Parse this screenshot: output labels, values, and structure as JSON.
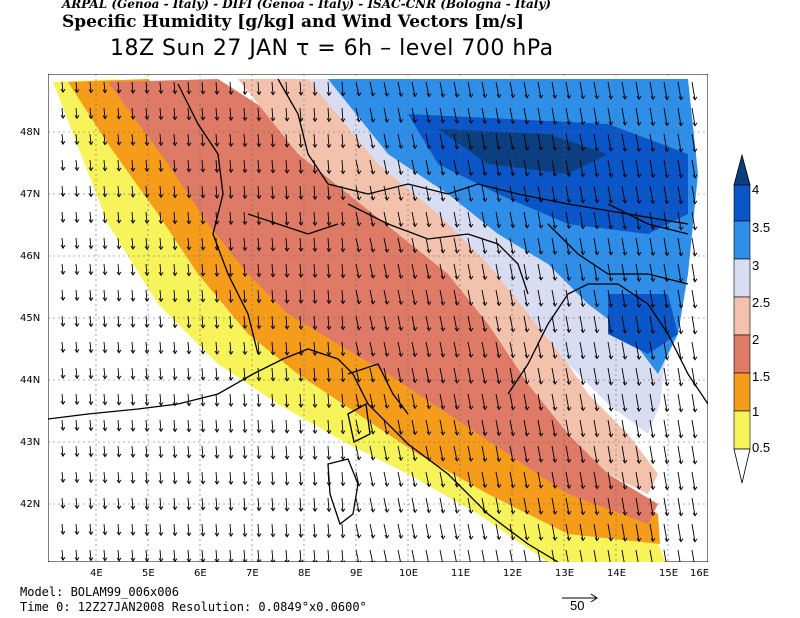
{
  "header": {
    "credits": "ARPAL (Genoa - Italy)  -  DIFI (Genoa - Italy)  -  ISAC-CNR (Bologna - Italy)",
    "subtitle": "Specific Humidity [g/kg] and Wind Vectors [m/s]",
    "title": "18Z Sun 27 JAN   τ = 6h   –   level 700 hPa"
  },
  "map": {
    "lat_labels": [
      "48N",
      "47N",
      "46N",
      "45N",
      "44N",
      "43N",
      "42N"
    ],
    "lon_labels": [
      "4E",
      "5E",
      "6E",
      "7E",
      "8E",
      "9E",
      "10E",
      "11E",
      "12E",
      "13E",
      "14E",
      "15E",
      "16E"
    ],
    "ocean_color": "#ffffff"
  },
  "legend": {
    "levels": [
      "0.5",
      "1",
      "1.5",
      "2",
      "2.5",
      "3",
      "3.5",
      "4"
    ],
    "colors": [
      "#ffffff",
      "#f7f35a",
      "#f59c1a",
      "#de7a66",
      "#f3c2ad",
      "#d9ddf2",
      "#2f8ee8",
      "#0a56c8",
      "#0c3f80"
    ]
  },
  "footer": {
    "model": "Model: BOLAM99_006x006",
    "time": "Time 0: 12Z27JAN2008     Resolution: 0.0849°x0.0600°",
    "ref_vector_label": "50"
  }
}
